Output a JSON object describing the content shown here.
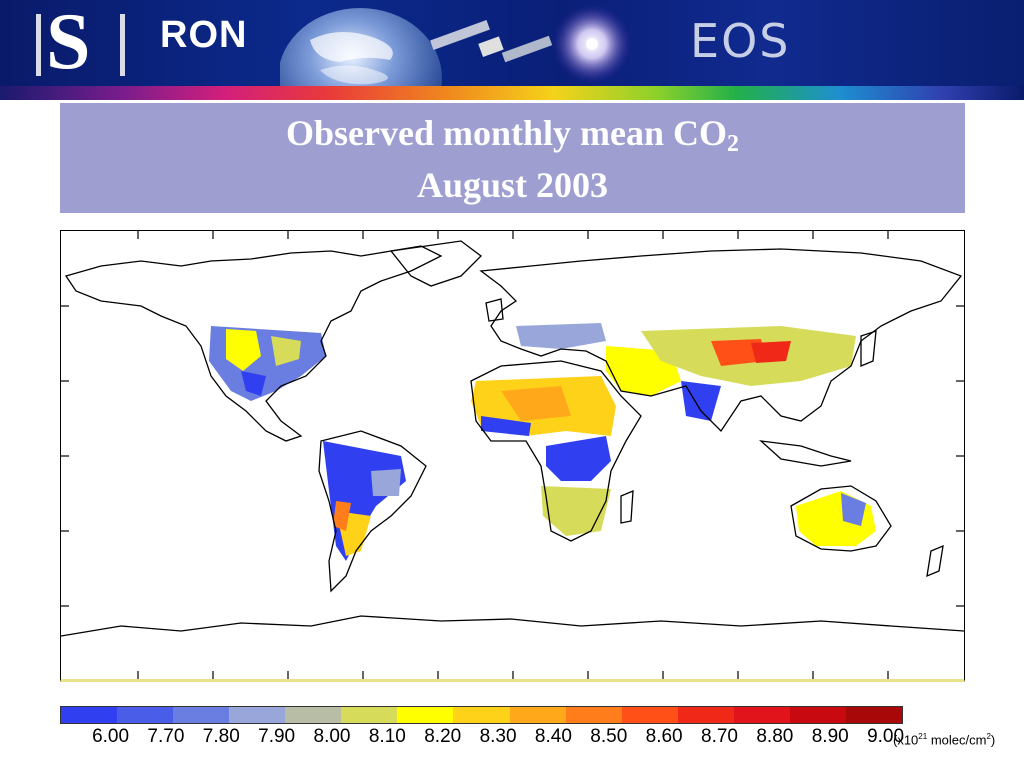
{
  "header": {
    "logo_letter": "S",
    "logo_text": "RON",
    "program_label": "EOS"
  },
  "title": {
    "line1_main": "Observed monthly mean CO",
    "line1_sub": "2",
    "line2": "August 2003"
  },
  "colors": {
    "title_box": "#9e9fd0",
    "banner": "#0b2a8c"
  },
  "legend": {
    "labels": [
      "6.00",
      "7.70",
      "7.80",
      "7.90",
      "8.00",
      "8.10",
      "8.20",
      "8.30",
      "8.40",
      "8.50",
      "8.60",
      "8.70",
      "8.80",
      "8.90",
      "9.00"
    ],
    "colors": [
      "#3040f0",
      "#4a5de8",
      "#6a7de0",
      "#98a6da",
      "#b8bda6",
      "#d6dc5a",
      "#ffff00",
      "#ffd21a",
      "#ffa81a",
      "#ff7d1a",
      "#ff5018",
      "#f02818",
      "#e0141a",
      "#c80a10",
      "#a80808"
    ],
    "unit_prefix": "(x10",
    "unit_exp": "21",
    "unit_suffix": " molec/cm",
    "unit_exp2": "2",
    "unit_close": ")"
  }
}
